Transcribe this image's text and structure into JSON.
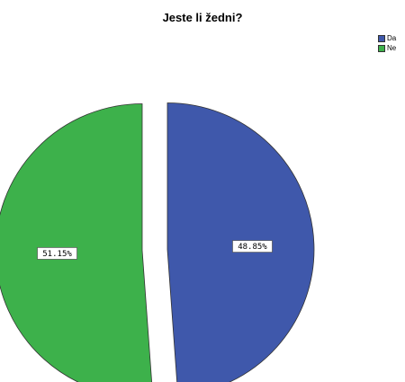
{
  "chart_data": {
    "type": "pie",
    "title": "Jeste li žedni?",
    "legend_position": "top-right",
    "slices": [
      {
        "name": "Da",
        "value": 48.85,
        "label": "48.85%",
        "color": "#3f58ab"
      },
      {
        "name": "Ne",
        "value": 51.15,
        "label": "51.15%",
        "color": "#3db14b"
      }
    ]
  }
}
